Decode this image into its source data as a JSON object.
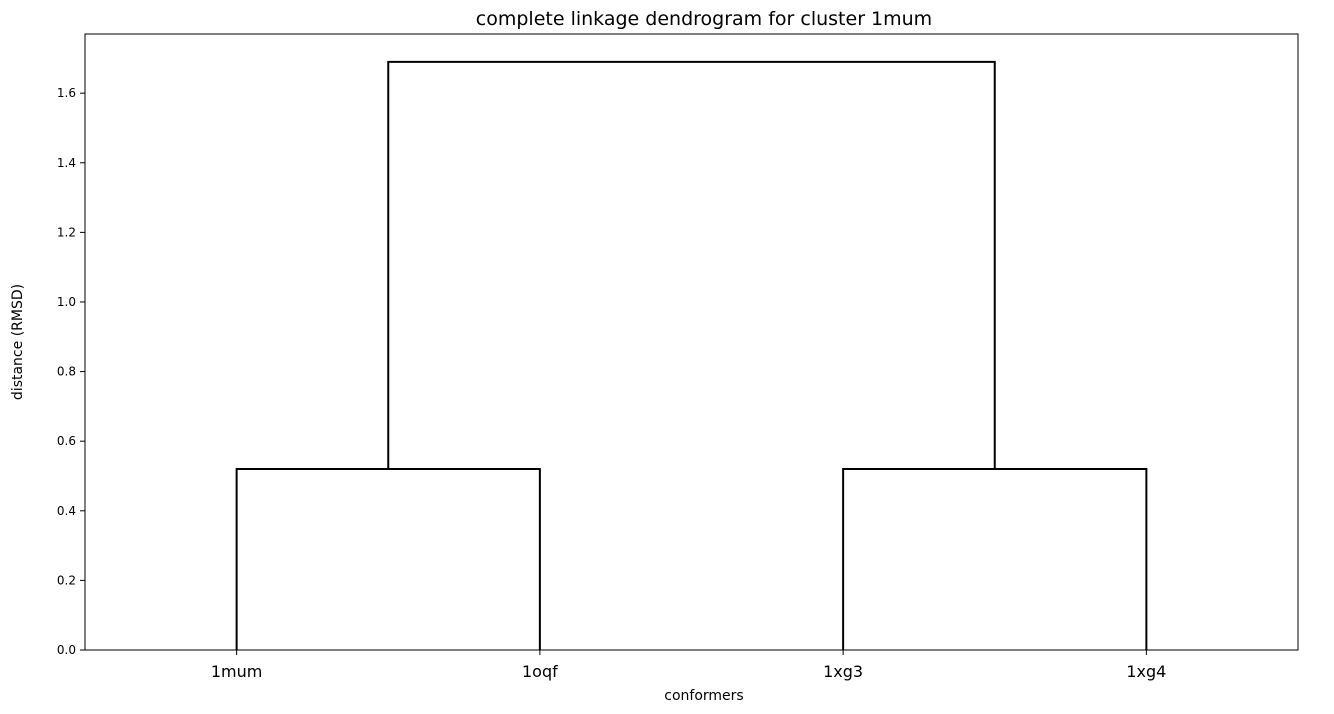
{
  "chart_data": {
    "type": "dendrogram",
    "title": "complete linkage dendrogram for cluster 1mum",
    "xlabel": "conformers",
    "ylabel": "distance (RMSD)",
    "ylim": [
      0,
      1.77
    ],
    "yticks": [
      "0.0",
      "0.2",
      "0.4",
      "0.6",
      "0.8",
      "1.0",
      "1.2",
      "1.4",
      "1.6"
    ],
    "leaves": [
      "1mum",
      "1oqf",
      "1xg3",
      "1xg4"
    ],
    "merges": [
      {
        "left": "1mum",
        "right": "1oqf",
        "height": 0.52
      },
      {
        "left": "1xg3",
        "right": "1xg4",
        "height": 0.52
      },
      {
        "left": "1mum+1oqf",
        "right": "1xg3+1xg4",
        "height": 1.69
      }
    ],
    "grid": false,
    "line_color": "#000000"
  }
}
